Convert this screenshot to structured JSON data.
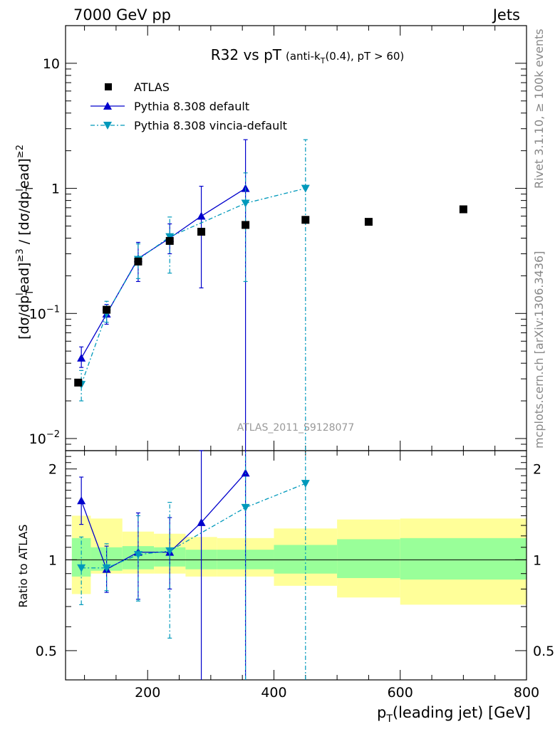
{
  "header": {
    "energy": "7000 GeV pp",
    "category": "Jets"
  },
  "side": {
    "rivet": "Rivet 3.1.10, ≥ 100k events",
    "mcplots": "mcplots.cern.ch [arXiv:1306.3436]"
  },
  "chart_data": {
    "type": "scatter",
    "title_main": "R32 vs pT",
    "title_sub": "(anti-k",
    "title_sub_idx": "T",
    "title_sub_rest": "(0.4), pT > 60)",
    "analysis_id": "ATLAS_2011_S9128077",
    "ylabel_parts": [
      "[dσ/dp",
      "T",
      "l",
      "ead]",
      "≥3",
      " / [dσ/dp",
      "T",
      "l",
      "ead]",
      "≥2"
    ],
    "ratio_ylabel": "Ratio to ATLAS",
    "xlabel_main": "p",
    "xlabel_sub": "T",
    "xlabel_rest": "(leading jet) [GeV]",
    "xlim": [
      70,
      800
    ],
    "ylim": [
      0.008,
      20
    ],
    "yscale": "log",
    "ratio_ylim": [
      0.4,
      2.3
    ],
    "ratio_yscale": "log",
    "x_ticks": [
      200,
      400,
      600,
      800
    ],
    "y_ticks": [
      {
        "value": 0.01,
        "base": "10",
        "exp": "−2"
      },
      {
        "value": 0.1,
        "base": "10",
        "exp": "−1"
      },
      {
        "value": 1,
        "base": "1",
        "exp": ""
      },
      {
        "value": 10,
        "base": "10",
        "exp": ""
      }
    ],
    "ratio_y_ticks": [
      {
        "value": 0.5,
        "label": "0.5"
      },
      {
        "value": 1,
        "label": "1"
      },
      {
        "value": 2,
        "label": "2"
      }
    ],
    "legend_position": "top-left",
    "series": [
      {
        "name": "ATLAS",
        "marker": "square",
        "color": "#000000",
        "x": [
          90,
          135,
          185,
          235,
          285,
          355,
          450,
          550,
          700
        ],
        "y": [
          0.028,
          0.107,
          0.26,
          0.38,
          0.45,
          0.51,
          0.56,
          0.54,
          0.68
        ],
        "x_bins": [
          [
            80,
            110
          ],
          [
            110,
            160
          ],
          [
            160,
            210
          ],
          [
            210,
            260
          ],
          [
            260,
            310
          ],
          [
            310,
            400
          ],
          [
            400,
            500
          ],
          [
            500,
            600
          ],
          [
            600,
            800
          ]
        ],
        "band_inner": [
          [
            0.88,
            1.18
          ],
          [
            0.92,
            1.1
          ],
          [
            0.93,
            1.11
          ],
          [
            0.95,
            1.1
          ],
          [
            0.93,
            1.08
          ],
          [
            0.93,
            1.08
          ],
          [
            0.9,
            1.12
          ],
          [
            0.87,
            1.17
          ],
          [
            0.86,
            1.18
          ]
        ],
        "band_outer": [
          [
            0.77,
            1.4
          ],
          [
            0.9,
            1.37
          ],
          [
            0.9,
            1.24
          ],
          [
            0.9,
            1.22
          ],
          [
            0.88,
            1.19
          ],
          [
            0.88,
            1.18
          ],
          [
            0.82,
            1.27
          ],
          [
            0.75,
            1.36
          ],
          [
            0.71,
            1.37
          ]
        ]
      },
      {
        "name": "Pythia 8.308 default",
        "marker": "triangle-up",
        "color": "#0000cc",
        "x": [
          95,
          135,
          185,
          235,
          285,
          355
        ],
        "y": [
          0.044,
          0.099,
          0.275,
          0.4,
          0.6,
          1.0
        ],
        "yerr": [
          [
            0.037,
            0.054
          ],
          [
            0.082,
            0.118
          ],
          [
            0.18,
            0.37
          ],
          [
            0.3,
            0.52
          ],
          [
            0.16,
            1.04
          ],
          [
            0.001,
            2.45
          ]
        ],
        "ratio": [
          1.57,
          0.93,
          1.06,
          1.06,
          1.33,
          1.94
        ],
        "ratio_err": [
          [
            1.31,
            1.88
          ],
          [
            0.78,
            1.11
          ],
          [
            0.74,
            1.43
          ],
          [
            0.8,
            1.38
          ],
          [
            0.36,
            2.3
          ],
          [
            0.01,
            4.8
          ]
        ]
      },
      {
        "name": "Pythia 8.308 vincia-default",
        "marker": "triangle-down",
        "color": "#0099bb",
        "x": [
          95,
          135,
          185,
          235,
          355,
          450
        ],
        "y": [
          0.027,
          0.1,
          0.27,
          0.41,
          0.76,
          1.0
        ],
        "yerr": [
          [
            0.02,
            0.035
          ],
          [
            0.085,
            0.125
          ],
          [
            0.19,
            0.36
          ],
          [
            0.21,
            0.59
          ],
          [
            0.18,
            1.33
          ],
          [
            0.001,
            2.45
          ]
        ],
        "ratio": [
          0.94,
          0.94,
          1.04,
          1.07,
          1.49,
          1.79
        ],
        "ratio_err": [
          [
            0.71,
            1.19
          ],
          [
            0.79,
            1.13
          ],
          [
            0.73,
            1.4
          ],
          [
            0.55,
            1.55
          ],
          [
            0.36,
            2.6
          ],
          [
            0.01,
            4.4
          ]
        ]
      }
    ]
  }
}
